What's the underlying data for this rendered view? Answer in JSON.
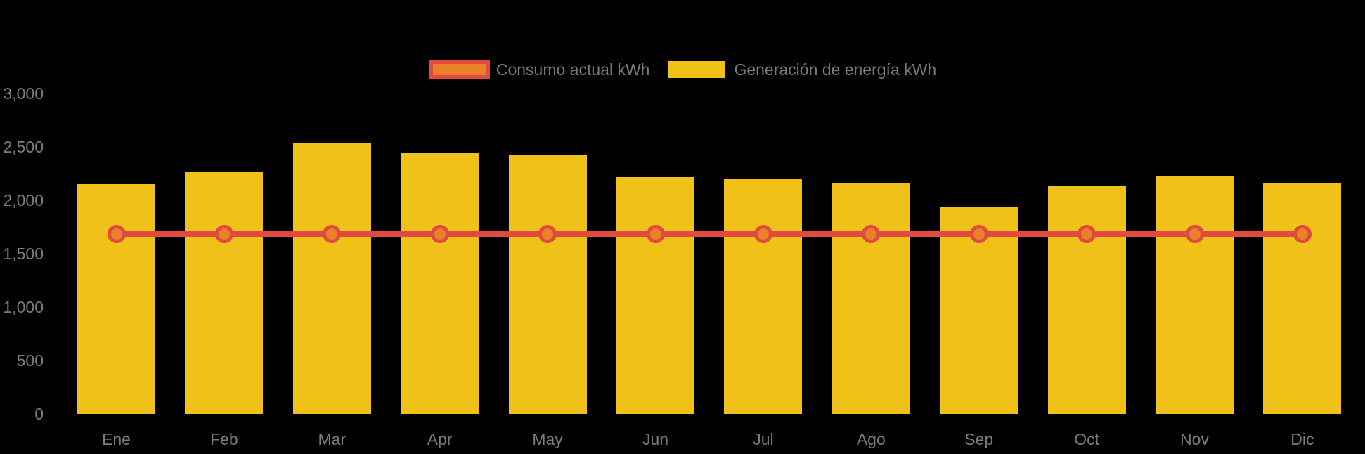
{
  "colors": {
    "background": "#000000",
    "bar": "#F0C219",
    "line": "#E2493F",
    "marker_fill": "#E8812A",
    "text": "#7B7B7B"
  },
  "legend": {
    "items": [
      {
        "label": "Consumo actual kWh",
        "series": "consumo"
      },
      {
        "label": "Generación de energía kWh",
        "series": "generacion"
      }
    ]
  },
  "y_axis": {
    "tick_labels": [
      "3,000",
      "2,500",
      "2,000",
      "1,500",
      "1,000",
      "500",
      "0"
    ],
    "tick_values": [
      3000,
      2500,
      2000,
      1500,
      1000,
      500,
      0
    ]
  },
  "chart_data": {
    "type": "bar",
    "subtype": "combo-bar-line",
    "categories": [
      "Ene",
      "Feb",
      "Mar",
      "Apr",
      "May",
      "Jun",
      "Jul",
      "Ago",
      "Sep",
      "Oct",
      "Nov",
      "Dic"
    ],
    "series": [
      {
        "name": "Consumo actual kWh",
        "type": "line",
        "color": "#E2493F",
        "marker_color": "#E8812A",
        "values": [
          1685,
          1685,
          1685,
          1685,
          1685,
          1685,
          1685,
          1685,
          1685,
          1685,
          1685,
          1685
        ]
      },
      {
        "name": "Generación de energía kWh",
        "type": "bar",
        "color": "#F0C219",
        "values": [
          2150,
          2265,
          2540,
          2445,
          2430,
          2215,
          2205,
          2160,
          1940,
          2140,
          2230,
          2165
        ]
      }
    ],
    "xlabel": "",
    "ylabel": "",
    "title": "",
    "ylim": [
      0,
      3000
    ],
    "ytick_step": 500,
    "grid": false,
    "legend_position": "top-center"
  }
}
